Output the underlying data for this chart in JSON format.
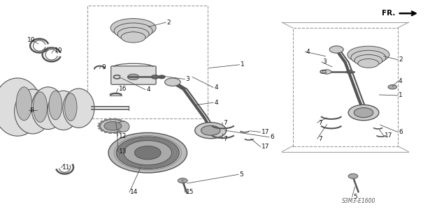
{
  "bg_color": "#ffffff",
  "fig_width": 6.25,
  "fig_height": 3.2,
  "dpi": 100,
  "gray": "#555555",
  "lgray": "#cccccc",
  "mgray": "#aaaaaa",
  "dgray": "#222222",
  "line_color": "#333333",
  "leader_color": "#444444"
}
